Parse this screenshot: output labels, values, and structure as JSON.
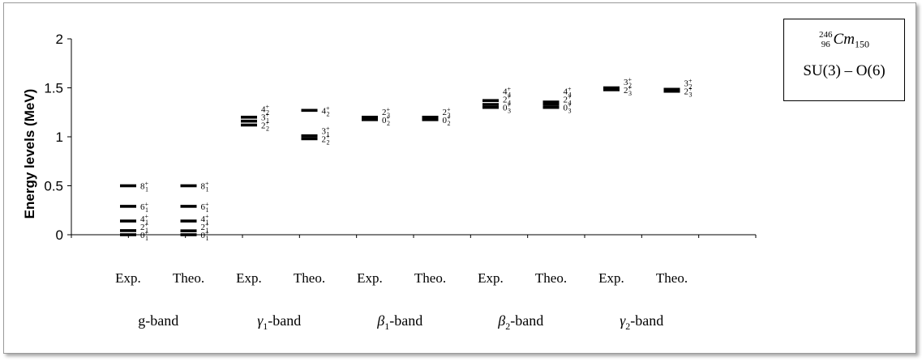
{
  "legend": {
    "mass_number": "246",
    "atomic_number": "96",
    "element": "Cm",
    "neutron_number": "150",
    "model": "SU(3) – O(6)"
  },
  "chart_data": {
    "type": "level-scheme",
    "ylabel": "Energy levels (MeV)",
    "ylim": [
      0,
      2
    ],
    "yticks": [
      "0",
      "0.5",
      "1",
      "1.5",
      "2"
    ],
    "bands": [
      {
        "label_prefix": "",
        "label_greek": "",
        "label_sub": "",
        "label_main": "g-band",
        "columns": [
          {
            "label": "Exp.",
            "levels": [
              {
                "energy": 0.0,
                "spin": "0",
                "sub": "1"
              },
              {
                "energy": 0.042,
                "spin": "2",
                "sub": "1"
              },
              {
                "energy": 0.14,
                "spin": "4",
                "sub": "1"
              },
              {
                "energy": 0.29,
                "spin": "6",
                "sub": "1"
              },
              {
                "energy": 0.5,
                "spin": "8",
                "sub": "1"
              }
            ]
          },
          {
            "label": "Theo.",
            "levels": [
              {
                "energy": 0.0,
                "spin": "0",
                "sub": "1"
              },
              {
                "energy": 0.04,
                "spin": "2",
                "sub": "1"
              },
              {
                "energy": 0.14,
                "spin": "4",
                "sub": "1"
              },
              {
                "energy": 0.29,
                "spin": "6",
                "sub": "1"
              },
              {
                "energy": 0.5,
                "spin": "8",
                "sub": "1"
              }
            ]
          }
        ]
      },
      {
        "label_greek": "γ",
        "label_sub": "1",
        "label_main": "-band",
        "columns": [
          {
            "label": "Exp.",
            "levels": [
              {
                "energy": 1.12,
                "spin": "2",
                "sub": "2"
              },
              {
                "energy": 1.16,
                "spin": "3",
                "sub": "1"
              },
              {
                "energy": 1.2,
                "spin": "4",
                "sub": "2"
              }
            ]
          },
          {
            "label": "Theo.",
            "levels": [
              {
                "energy": 0.98,
                "spin": "2",
                "sub": "2"
              },
              {
                "energy": 1.01,
                "spin": "3",
                "sub": "1"
              },
              {
                "energy": 1.27,
                "spin": "4",
                "sub": "2"
              }
            ]
          }
        ]
      },
      {
        "label_greek": "β",
        "label_sub": "1",
        "label_main": "-band",
        "columns": [
          {
            "label": "Exp.",
            "levels": [
              {
                "energy": 1.175,
                "spin": "0",
                "sub": "2"
              },
              {
                "energy": 1.2,
                "spin": "2",
                "sub": "3"
              }
            ]
          },
          {
            "label": "Theo.",
            "levels": [
              {
                "energy": 1.175,
                "spin": "0",
                "sub": "2"
              },
              {
                "energy": 1.2,
                "spin": "2",
                "sub": "3"
              }
            ]
          }
        ]
      },
      {
        "label_greek": "β",
        "label_sub": "2",
        "label_main": "-band",
        "columns": [
          {
            "label": "Exp.",
            "levels": [
              {
                "energy": 1.3,
                "spin": "0",
                "sub": "3"
              },
              {
                "energy": 1.33,
                "spin": "2",
                "sub": "4"
              },
              {
                "energy": 1.37,
                "spin": "4",
                "sub": "4"
              }
            ]
          },
          {
            "label": "Theo.",
            "levels": [
              {
                "energy": 1.3,
                "spin": "0",
                "sub": "3"
              },
              {
                "energy": 1.33,
                "spin": "2",
                "sub": "4"
              },
              {
                "energy": 1.355,
                "spin": "4",
                "sub": "4"
              }
            ]
          }
        ]
      },
      {
        "label_greek": "γ",
        "label_sub": "2",
        "label_main": "-band",
        "columns": [
          {
            "label": "Exp.",
            "levels": [
              {
                "energy": 1.48,
                "spin": "2",
                "sub": "3"
              },
              {
                "energy": 1.5,
                "spin": "3",
                "sub": "2"
              }
            ]
          },
          {
            "label": "Theo.",
            "levels": [
              {
                "energy": 1.465,
                "spin": "2",
                "sub": "3"
              },
              {
                "energy": 1.485,
                "spin": "3",
                "sub": "2"
              }
            ]
          }
        ]
      }
    ]
  }
}
